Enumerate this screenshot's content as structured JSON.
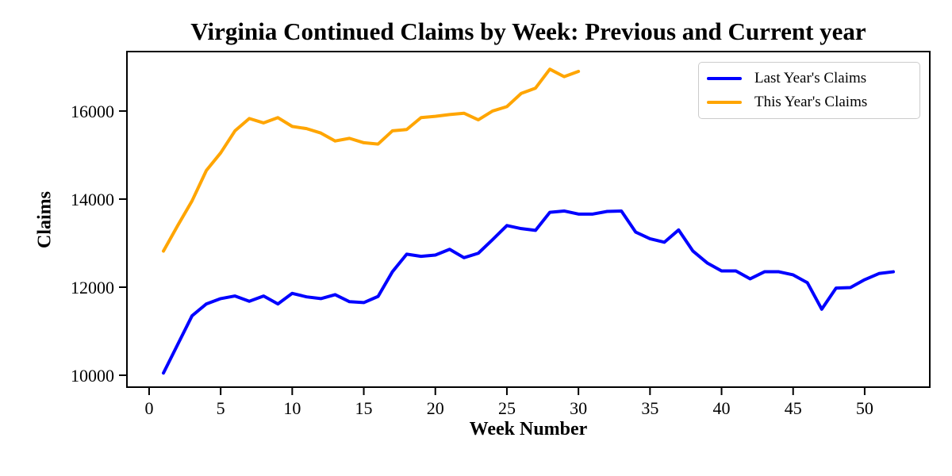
{
  "chart_data": {
    "type": "line",
    "title": "Virginia Continued Claims by Week: Previous and Current year",
    "xlabel": "Week Number",
    "ylabel": "Claims",
    "xlim": [
      -1.55,
      54.55
    ],
    "ylim": [
      9730,
      17350
    ],
    "x_ticks": [
      0,
      5,
      10,
      15,
      20,
      25,
      30,
      35,
      40,
      45,
      50
    ],
    "y_ticks": [
      10000,
      12000,
      14000,
      16000
    ],
    "grid": false,
    "legend_position": "upper right",
    "background_color": "#ffffff",
    "axis_color": "#000000",
    "series": [
      {
        "name": "Last Year's Claims",
        "color": "#0000FF",
        "x": [
          1,
          2,
          3,
          4,
          5,
          6,
          7,
          8,
          9,
          10,
          11,
          12,
          13,
          14,
          15,
          16,
          17,
          18,
          19,
          20,
          21,
          22,
          23,
          24,
          25,
          26,
          27,
          28,
          29,
          30,
          31,
          32,
          33,
          34,
          35,
          36,
          37,
          38,
          39,
          40,
          41,
          42,
          43,
          44,
          45,
          46,
          47,
          48,
          49,
          50,
          51,
          52
        ],
        "values": [
          10050,
          10700,
          11350,
          11620,
          11740,
          11800,
          11680,
          11800,
          11620,
          11860,
          11780,
          11740,
          11830,
          11670,
          11650,
          11790,
          12350,
          12750,
          12700,
          12730,
          12860,
          12670,
          12770,
          13080,
          13400,
          13330,
          13290,
          13700,
          13730,
          13660,
          13660,
          13720,
          13730,
          13250,
          13100,
          13020,
          13300,
          12820,
          12550,
          12370,
          12370,
          12190,
          12350,
          12350,
          12280,
          12100,
          11500,
          11980,
          11990,
          12170,
          12310,
          12350
        ]
      },
      {
        "name": "This Year's Claims",
        "color": "#FFA500",
        "x": [
          1,
          2,
          3,
          4,
          5,
          6,
          7,
          8,
          9,
          10,
          11,
          12,
          13,
          14,
          15,
          16,
          17,
          18,
          19,
          20,
          21,
          22,
          23,
          24,
          25,
          26,
          27,
          28,
          29,
          30
        ],
        "values": [
          12820,
          13400,
          13960,
          14650,
          15050,
          15550,
          15830,
          15730,
          15850,
          15650,
          15600,
          15500,
          15320,
          15380,
          15280,
          15250,
          15550,
          15580,
          15850,
          15880,
          15920,
          15950,
          15800,
          16000,
          16100,
          16400,
          16520,
          16950,
          16780,
          16900
        ]
      }
    ]
  }
}
